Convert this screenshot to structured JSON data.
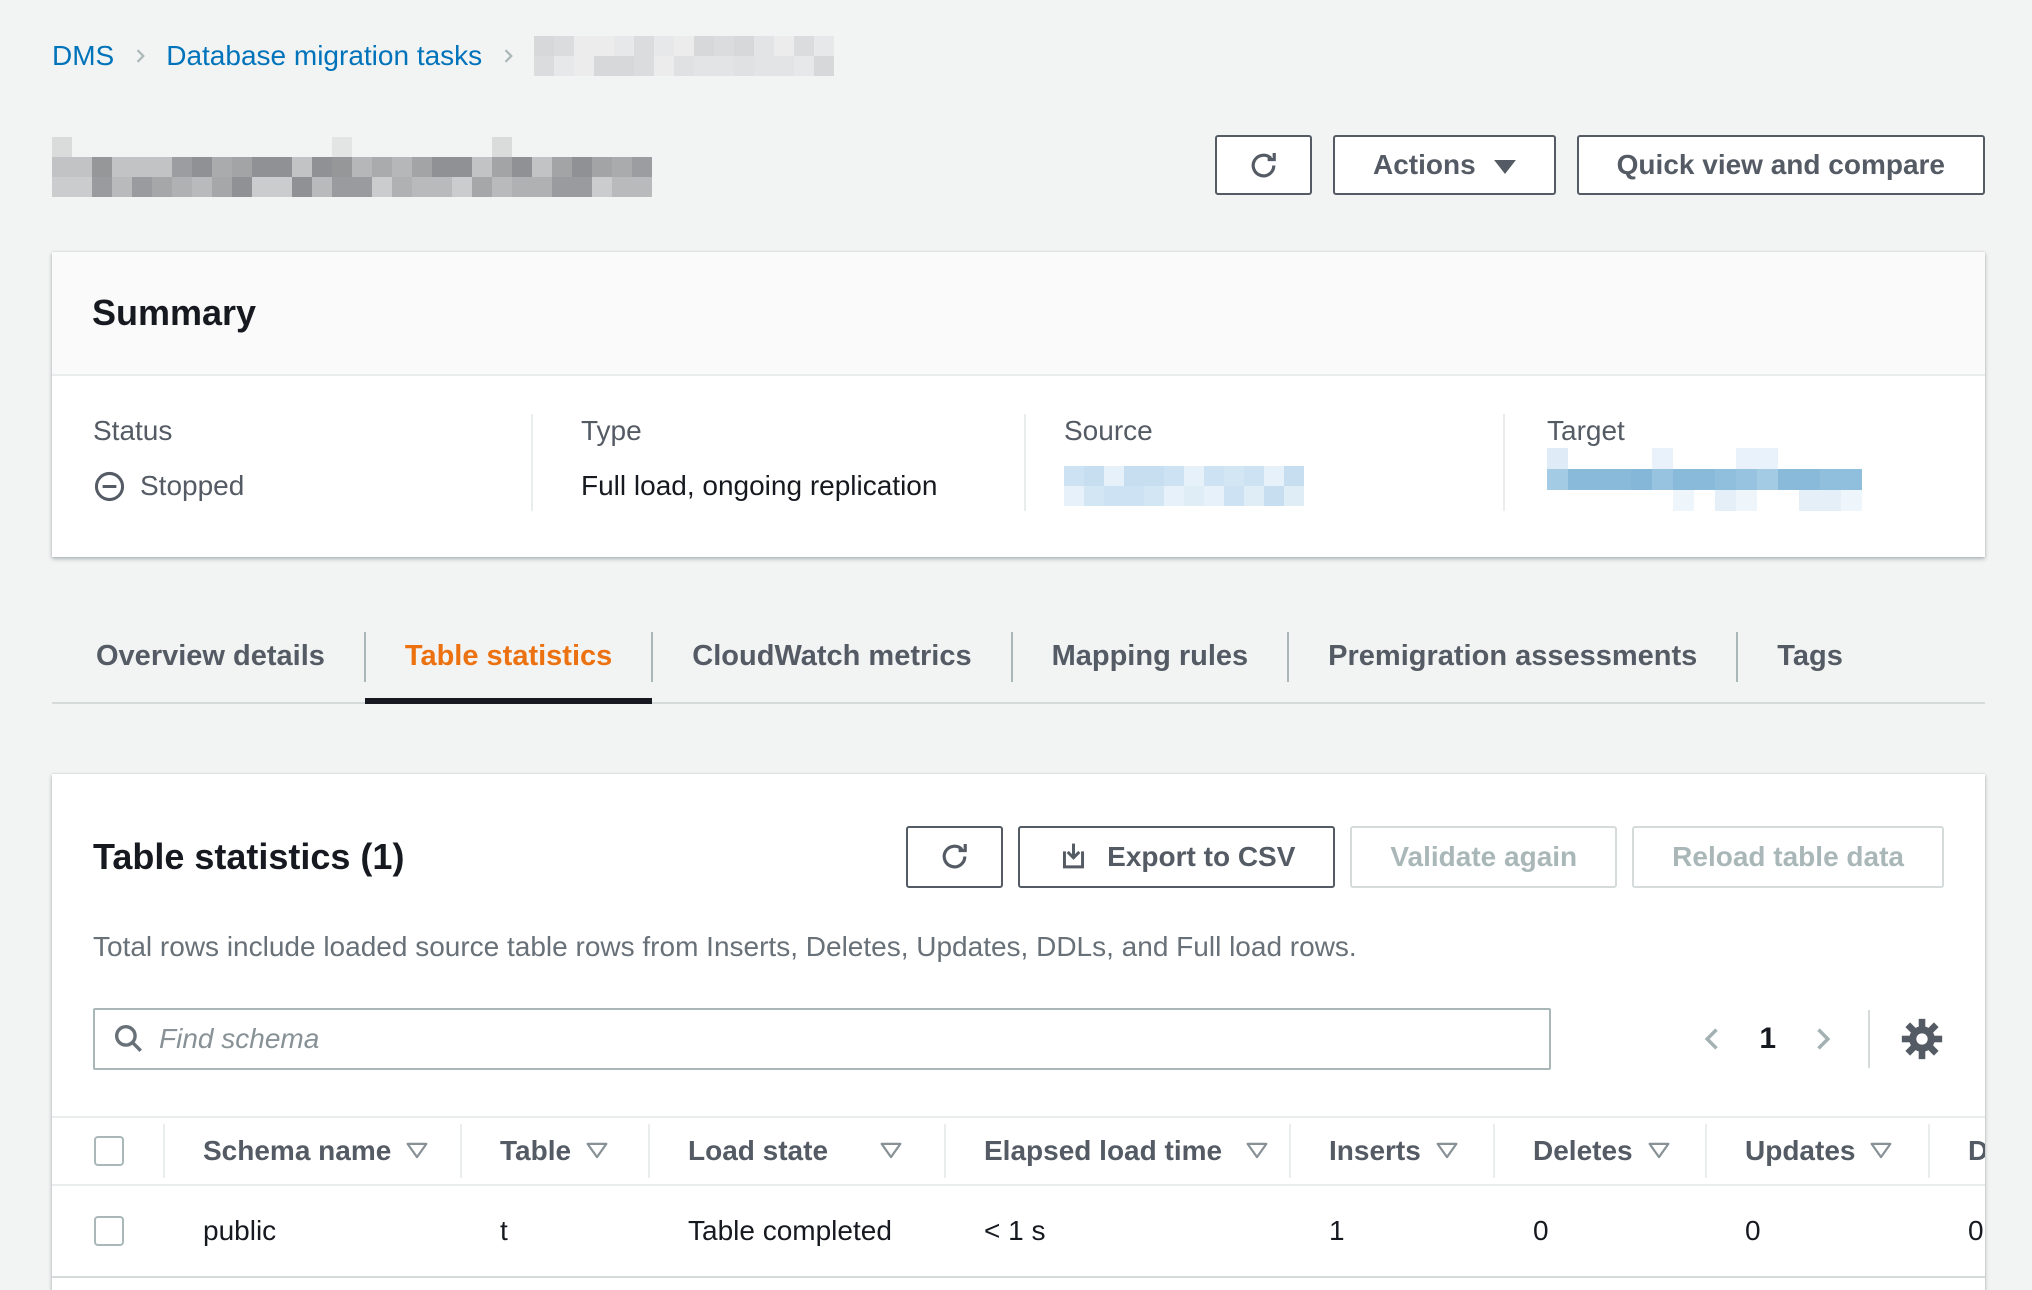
{
  "breadcrumb": {
    "items": [
      {
        "label": "DMS"
      },
      {
        "label": "Database migration tasks"
      }
    ],
    "current_item_redacted": true
  },
  "page_actions": {
    "actions_button": "Actions",
    "quick_view_button": "Quick view and compare"
  },
  "summary": {
    "title": "Summary",
    "status_label": "Status",
    "status_value": "Stopped",
    "type_label": "Type",
    "type_value": "Full load, ongoing replication",
    "source_label": "Source",
    "target_label": "Target"
  },
  "tabs": [
    {
      "label": "Overview details"
    },
    {
      "label": "Table statistics"
    },
    {
      "label": "CloudWatch metrics"
    },
    {
      "label": "Mapping rules"
    },
    {
      "label": "Premigration assessments"
    },
    {
      "label": "Tags"
    }
  ],
  "active_tab": "Table statistics",
  "table_statistics": {
    "title": "Table statistics (1)",
    "description": "Total rows include loaded source table rows from Inserts, Deletes, Updates, DDLs, and Full load rows.",
    "export_button": "Export to CSV",
    "validate_button": "Validate again",
    "reload_button": "Reload table data",
    "search_placeholder": "Find schema",
    "pagination": {
      "page": "1"
    },
    "columns": [
      {
        "label": "Schema name"
      },
      {
        "label": "Table"
      },
      {
        "label": "Load state"
      },
      {
        "label": "Elapsed load time"
      },
      {
        "label": "Inserts"
      },
      {
        "label": "Deletes"
      },
      {
        "label": "Updates"
      },
      {
        "label": "D",
        "truncated": true
      }
    ],
    "rows": [
      {
        "schema_name": "public",
        "table": "t",
        "load_state": "Table completed",
        "elapsed_load_time": "< 1 s",
        "inserts": "1",
        "deletes": "0",
        "updates": "0",
        "ddls": "0"
      }
    ]
  },
  "colors": {
    "link_blue": "#0073bb",
    "active_tab_orange": "#ec7211",
    "text_dark": "#16191f",
    "text_secondary": "#545b64",
    "disabled_text": "#aab7b8",
    "page_background": "#f2f3f3"
  }
}
